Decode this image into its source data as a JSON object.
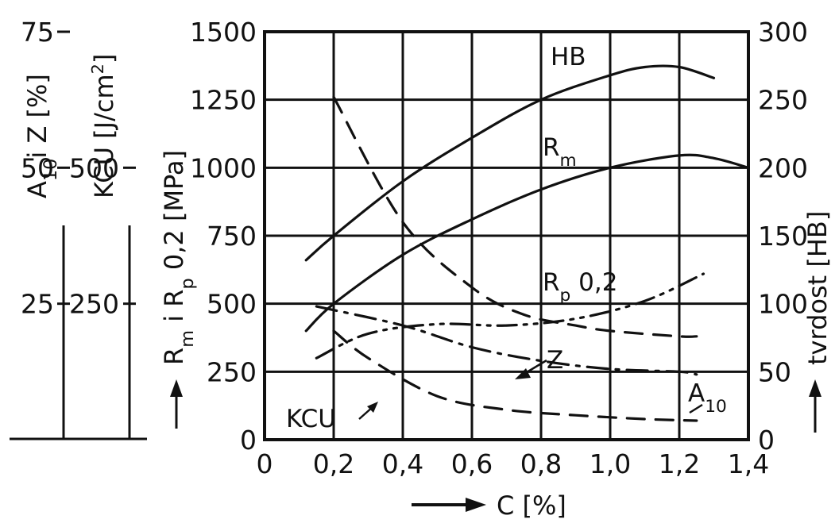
{
  "chart_data": {
    "type": "line",
    "xlabel": "C [%]",
    "xlim": [
      0,
      1.4
    ],
    "x_ticks": [
      "0",
      "0,2",
      "0,4",
      "0,6",
      "0,8",
      "1,0",
      "1,2",
      "1,4"
    ],
    "axes": {
      "strength": {
        "label_html": "R<sub>m</sub> i R<sub>p</sub> 0,2 [MPa]",
        "label_parts": [
          "R",
          "m",
          " i R",
          "p",
          " 0,2 [MPa]"
        ],
        "ylim": [
          0,
          1500
        ],
        "ticks": [
          "0",
          "250",
          "500",
          "750",
          "1000",
          "1250",
          "1500"
        ]
      },
      "hardness": {
        "label": "tvrdost [HB]",
        "ylim": [
          0,
          300
        ],
        "ticks": [
          "0",
          "50",
          "100",
          "150",
          "200",
          "250",
          "300"
        ]
      },
      "ductility": {
        "label_parts": [
          "A",
          "10",
          "i Z [%]"
        ],
        "ylim": [
          0,
          75
        ],
        "ticks": [
          "25",
          "50",
          "75"
        ]
      },
      "impact": {
        "label_parts": [
          "KCU [J/cm",
          "2",
          "]"
        ],
        "ylim": [
          0,
          750
        ],
        "ticks": [
          "250",
          "500"
        ]
      }
    },
    "series": [
      {
        "name": "HB",
        "axis": "hardness",
        "style": "solid",
        "x": [
          0.12,
          0.2,
          0.4,
          0.6,
          0.8,
          1.0,
          1.1,
          1.2,
          1.3
        ],
        "y": [
          132,
          150,
          190,
          222,
          250,
          268,
          274,
          274,
          266
        ]
      },
      {
        "name": "R",
        "name_sub": "m",
        "axis": "strength",
        "style": "solid",
        "x": [
          0.12,
          0.2,
          0.4,
          0.6,
          0.8,
          1.0,
          1.2,
          1.3,
          1.4
        ],
        "y": [
          400,
          500,
          680,
          810,
          920,
          1000,
          1045,
          1035,
          1000
        ]
      },
      {
        "name": "R",
        "name_sub": "p",
        "name_suffix": " 0,2",
        "axis": "strength",
        "style": "dash-dot-dot",
        "x": [
          0.15,
          0.3,
          0.5,
          0.7,
          0.9,
          1.1,
          1.27
        ],
        "y": [
          300,
          390,
          425,
          420,
          445,
          510,
          610
        ]
      },
      {
        "name": "Z",
        "axis": "ductility",
        "style": "dashed",
        "x": [
          0.2,
          0.4,
          0.6,
          0.75,
          0.9,
          1.0,
          1.2,
          1.25
        ],
        "y": [
          63,
          40,
          28,
          23,
          21,
          20,
          19,
          19
        ]
      },
      {
        "name": "A",
        "name_sub": "10",
        "axis": "ductility",
        "style": "dash-dot",
        "x": [
          0.15,
          0.4,
          0.6,
          0.8,
          1.0,
          1.2,
          1.25
        ],
        "y": [
          24.5,
          21,
          17,
          14.5,
          13,
          12.5,
          12
        ]
      },
      {
        "name": "KCU",
        "axis": "impact",
        "style": "dashed",
        "x": [
          0.2,
          0.3,
          0.5,
          0.7,
          0.9,
          1.1,
          1.25
        ],
        "y": [
          200,
          150,
          80,
          55,
          45,
          38,
          35
        ]
      }
    ]
  }
}
